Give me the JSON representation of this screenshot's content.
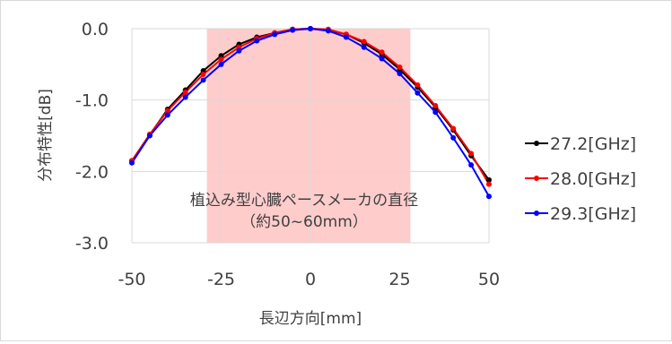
{
  "chart_data": {
    "type": "line",
    "xlabel": "長辺方向[mm]",
    "ylabel": "分布特性[dB]",
    "xlim": [
      -50,
      50
    ],
    "ylim": [
      -3,
      0
    ],
    "x_ticks": [
      "-50",
      "-25",
      "0",
      "25",
      "50"
    ],
    "y_ticks": [
      "0.0",
      "-1.0",
      "-2.0",
      "-3.0"
    ],
    "grid": true,
    "legend_position": "right",
    "highlight_region": {
      "x_range": [
        -29,
        28
      ],
      "color": "#ffcccc",
      "label_line1": "植込み型心臓ペースメーカの直径",
      "label_line2": "（約50~60mm）"
    },
    "x": [
      -50,
      -45,
      -40,
      -35,
      -30,
      -25,
      -20,
      -15,
      -10,
      -5,
      0,
      5,
      10,
      15,
      20,
      25,
      30,
      35,
      40,
      45,
      50
    ],
    "series": [
      {
        "name": "27.2[GHz]",
        "color": "#000000",
        "values": [
          -1.85,
          -1.49,
          -1.13,
          -0.86,
          -0.59,
          -0.38,
          -0.22,
          -0.12,
          -0.06,
          -0.01,
          0.0,
          -0.02,
          -0.08,
          -0.2,
          -0.36,
          -0.57,
          -0.82,
          -1.1,
          -1.42,
          -1.78,
          -2.12
        ]
      },
      {
        "name": "28.0[GHz]",
        "color": "#ff0000",
        "values": [
          -1.85,
          -1.48,
          -1.15,
          -0.89,
          -0.64,
          -0.43,
          -0.26,
          -0.14,
          -0.06,
          -0.01,
          0.0,
          -0.01,
          -0.08,
          -0.18,
          -0.33,
          -0.54,
          -0.79,
          -1.08,
          -1.4,
          -1.75,
          -2.18
        ]
      },
      {
        "name": "29.3[GHz]",
        "color": "#0000ff",
        "values": [
          -1.88,
          -1.5,
          -1.21,
          -0.96,
          -0.72,
          -0.5,
          -0.31,
          -0.17,
          -0.08,
          -0.02,
          0.0,
          -0.03,
          -0.12,
          -0.26,
          -0.42,
          -0.63,
          -0.9,
          -1.17,
          -1.53,
          -1.91,
          -2.35
        ]
      }
    ]
  }
}
